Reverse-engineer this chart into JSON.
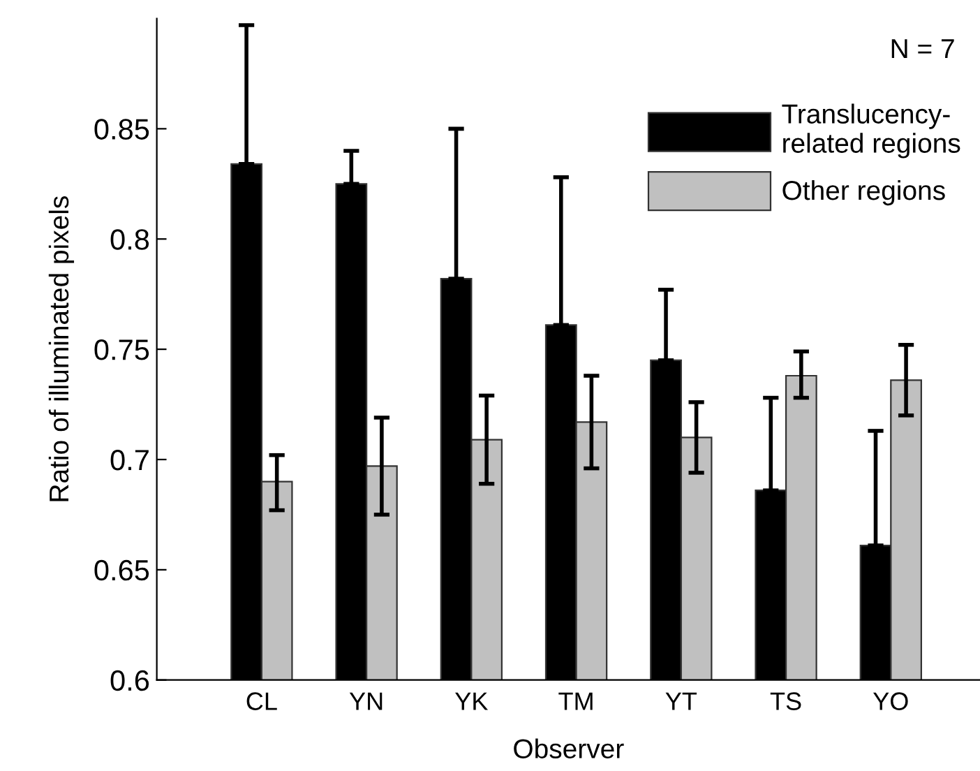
{
  "chart_data": {
    "type": "bar",
    "xlabel": "Observer",
    "ylabel": "Ratio of illuminated pixels",
    "categories": [
      "CL",
      "YN",
      "YK",
      "TM",
      "YT",
      "TS",
      "YO"
    ],
    "series": [
      {
        "name": "Translucency-\nrelated regions",
        "color": "#000000",
        "values": [
          0.834,
          0.825,
          0.782,
          0.761,
          0.745,
          0.686,
          0.661
        ],
        "errors": [
          [
            0.834,
            0.897
          ],
          [
            0.825,
            0.84
          ],
          [
            0.782,
            0.85
          ],
          [
            0.761,
            0.828
          ],
          [
            0.745,
            0.777
          ],
          [
            0.686,
            0.728
          ],
          [
            0.661,
            0.713
          ]
        ]
      },
      {
        "name": "Other regions",
        "color": "#c0c0c0",
        "values": [
          0.69,
          0.697,
          0.709,
          0.717,
          0.71,
          0.738,
          0.736
        ],
        "errors": [
          [
            0.677,
            0.702
          ],
          [
            0.675,
            0.719
          ],
          [
            0.689,
            0.729
          ],
          [
            0.696,
            0.738
          ],
          [
            0.694,
            0.726
          ],
          [
            0.728,
            0.749
          ],
          [
            0.72,
            0.752
          ]
        ]
      }
    ],
    "ylim": [
      0.6,
      0.9
    ],
    "yticks": [
      0.6,
      0.65,
      {
        "value": 0.7,
        "label": "0.7"
      },
      0.75,
      {
        "value": 0.8,
        "label": "0.8"
      },
      0.85
    ],
    "grid": false,
    "legend": "top right",
    "annotations": [
      "N = 7"
    ]
  }
}
